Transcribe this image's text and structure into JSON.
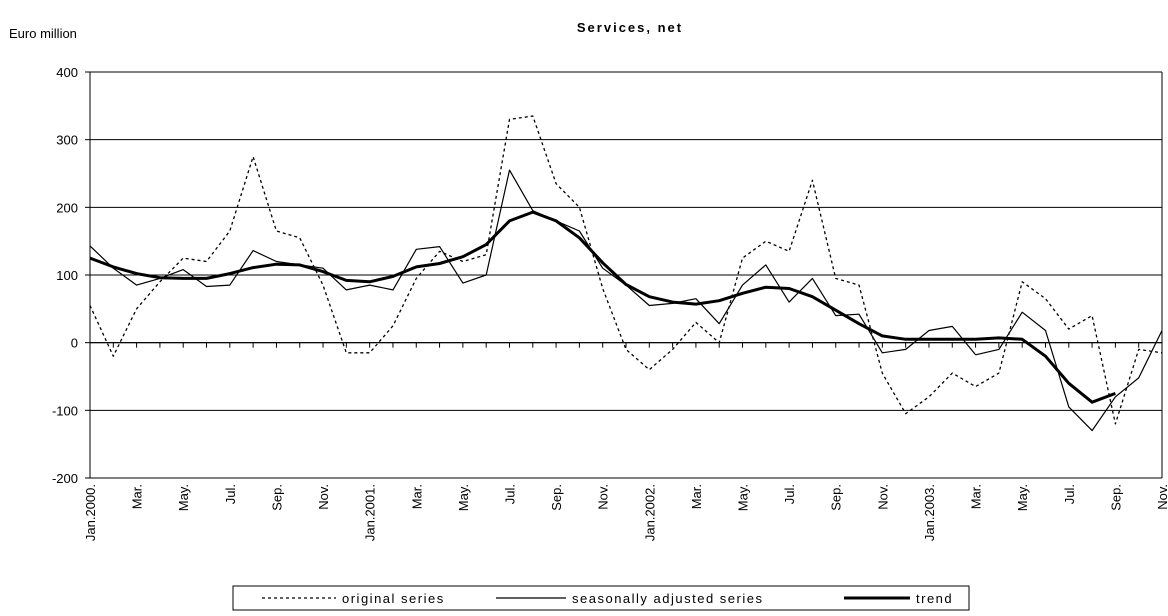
{
  "chart_data": {
    "type": "line",
    "title": "Services, net",
    "ylabel": "Euro million",
    "xlabel": "",
    "ylim": [
      -200,
      400
    ],
    "yticks": [
      "400",
      "300",
      "200",
      "100",
      "0",
      "-100",
      "-200"
    ],
    "ytick_values": [
      400,
      300,
      200,
      100,
      0,
      -100,
      -200
    ],
    "xtick_labels": [
      "Jan.2000.",
      "Mar.",
      "May.",
      "Jul.",
      "Sep.",
      "Nov.",
      "Jan.2001.",
      "Mar.",
      "May.",
      "Jul.",
      "Sep.",
      "Nov.",
      "Jan.2002.",
      "Mar.",
      "May.",
      "Jul.",
      "Sep.",
      "Nov.",
      "Jan.2003.",
      "Mar.",
      "May.",
      "Jul.",
      "Sep.",
      "Nov."
    ],
    "grid": true,
    "legend_position": "bottom",
    "x": [
      "2000-01",
      "2000-02",
      "2000-03",
      "2000-04",
      "2000-05",
      "2000-06",
      "2000-07",
      "2000-08",
      "2000-09",
      "2000-10",
      "2000-11",
      "2000-12",
      "2001-01",
      "2001-02",
      "2001-03",
      "2001-04",
      "2001-05",
      "2001-06",
      "2001-07",
      "2001-08",
      "2001-09",
      "2001-10",
      "2001-11",
      "2001-12",
      "2002-01",
      "2002-02",
      "2002-03",
      "2002-04",
      "2002-05",
      "2002-06",
      "2002-07",
      "2002-08",
      "2002-09",
      "2002-10",
      "2002-11",
      "2002-12",
      "2003-01",
      "2003-02",
      "2003-03",
      "2003-04",
      "2003-05",
      "2003-06",
      "2003-07",
      "2003-08",
      "2003-09",
      "2003-10",
      "2003-11"
    ],
    "series": [
      {
        "name": "original series",
        "style": "dotted",
        "values": [
          55,
          -20,
          50,
          90,
          125,
          120,
          165,
          275,
          165,
          155,
          85,
          -15,
          -15,
          25,
          95,
          135,
          120,
          130,
          330,
          335,
          235,
          200,
          80,
          -10,
          -40,
          -10,
          30,
          0,
          125,
          150,
          135,
          240,
          95,
          85,
          -45,
          -105,
          -80,
          -45,
          -65,
          -45,
          90,
          65,
          20,
          40,
          -120,
          -10,
          -15
        ]
      },
      {
        "name": "seasonally adjusted series",
        "style": "thin",
        "values": [
          143,
          110,
          85,
          95,
          108,
          83,
          85,
          136,
          120,
          115,
          110,
          78,
          85,
          78,
          138,
          142,
          88,
          100,
          255,
          195,
          180,
          165,
          110,
          85,
          55,
          58,
          65,
          28,
          85,
          115,
          60,
          95,
          40,
          42,
          -15,
          -10,
          18,
          24,
          -18,
          -10,
          45,
          18,
          -95,
          -130,
          -80,
          -52,
          18
        ]
      },
      {
        "name": "trend",
        "style": "thick",
        "values": [
          125,
          112,
          102,
          96,
          95,
          95,
          102,
          111,
          116,
          115,
          105,
          92,
          90,
          98,
          112,
          117,
          127,
          145,
          180,
          193,
          180,
          155,
          118,
          86,
          68,
          60,
          57,
          62,
          73,
          82,
          80,
          68,
          48,
          28,
          10,
          5,
          5,
          5,
          5,
          7,
          5,
          -20,
          -60,
          -88,
          -75,
          null,
          null
        ]
      }
    ]
  }
}
